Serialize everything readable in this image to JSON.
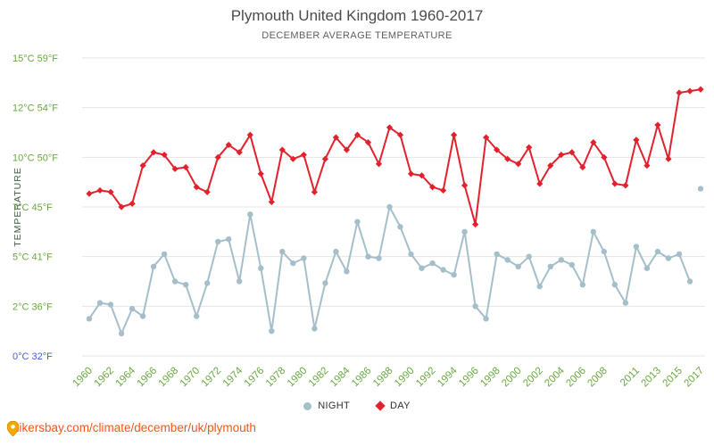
{
  "chart_data": {
    "type": "line",
    "title": "Plymouth United Kingdom 1960-2017",
    "subtitle": "DECEMBER AVERAGE TEMPERATURE",
    "ylabel": "TEMPERATURE",
    "xlabel": "",
    "ylim": [
      0,
      15
    ],
    "grid": "horizontal",
    "legend_position": "bottom",
    "x_start": 1960,
    "x_end": 2017,
    "x_tick_labels": [
      1960,
      1962,
      1964,
      1966,
      1968,
      1970,
      1972,
      1974,
      1976,
      1978,
      1980,
      1982,
      1984,
      1986,
      1988,
      1990,
      1992,
      1994,
      1996,
      1998,
      2000,
      2002,
      2004,
      2006,
      2008,
      2011,
      2013,
      2015,
      2017
    ],
    "y_ticks": [
      {
        "value": 15,
        "label": "15°C 59°F",
        "color": "#69a840"
      },
      {
        "value": 12,
        "label": "12°C 54°F",
        "color": "#69a840"
      },
      {
        "value": 10,
        "label": "10°C 50°F",
        "color": "#69a840"
      },
      {
        "value": 7,
        "label": "7°C 45°F",
        "color": "#69a840"
      },
      {
        "value": 5,
        "label": "5°C 41°F",
        "color": "#69a840"
      },
      {
        "value": 2,
        "label": "2°C 36°F",
        "color": "#69a840"
      },
      {
        "value": 0,
        "label": "0°C 32°F",
        "color": "#4b5fd6"
      }
    ],
    "series": [
      {
        "name": "NIGHT",
        "color": "#a5bfca",
        "marker": "circle",
        "gap_after_index": 56,
        "values": [
          1.5,
          2.2,
          2.1,
          0.9,
          1.9,
          1.6,
          4.4,
          5.1,
          3.5,
          3.3,
          1.6,
          3.4,
          5.6,
          5.7,
          3.5,
          6.7,
          4.3,
          1.0,
          5.2,
          4.6,
          4.9,
          1.1,
          3.4,
          5.2,
          4.1,
          6.4,
          5.0,
          4.9,
          7.0,
          6.2,
          5.1,
          4.3,
          4.6,
          4.2,
          3.9,
          6.0,
          2.0,
          1.5,
          5.1,
          4.8,
          4.4,
          5.0,
          3.2,
          4.4,
          4.8,
          4.5,
          3.3,
          6.0,
          5.2,
          3.3,
          2.2,
          5.4,
          4.3,
          5.2,
          4.9,
          5.1,
          3.5,
          8.1
        ]
      },
      {
        "name": "DAY",
        "color": "#e3212d",
        "marker": "diamond",
        "values": [
          7.8,
          8.0,
          7.9,
          7.0,
          7.2,
          9.5,
          10.2,
          10.1,
          9.3,
          9.4,
          8.2,
          7.9,
          10.0,
          10.5,
          10.2,
          10.9,
          9.0,
          7.3,
          10.3,
          9.9,
          10.1,
          7.9,
          9.9,
          10.8,
          10.3,
          10.9,
          10.6,
          9.6,
          11.2,
          10.9,
          9.0,
          8.9,
          8.2,
          8.0,
          10.9,
          8.3,
          6.3,
          10.8,
          10.3,
          9.9,
          9.6,
          10.4,
          8.4,
          9.5,
          10.1,
          10.2,
          9.4,
          10.6,
          10.0,
          8.4,
          8.3,
          10.7,
          9.5,
          11.3,
          9.9,
          12.9,
          13.0,
          13.1
        ]
      }
    ]
  },
  "footer": {
    "url": "hikersbay.com/climate/december/uk/plymouth"
  },
  "colors": {
    "day": "#e3212d",
    "night": "#a5bfca",
    "axis_green": "#69a840",
    "axis_blue": "#4b5fd6",
    "grid": "#e4e4e4",
    "footer_link": "#ff5317",
    "pin": "#f5a800"
  }
}
